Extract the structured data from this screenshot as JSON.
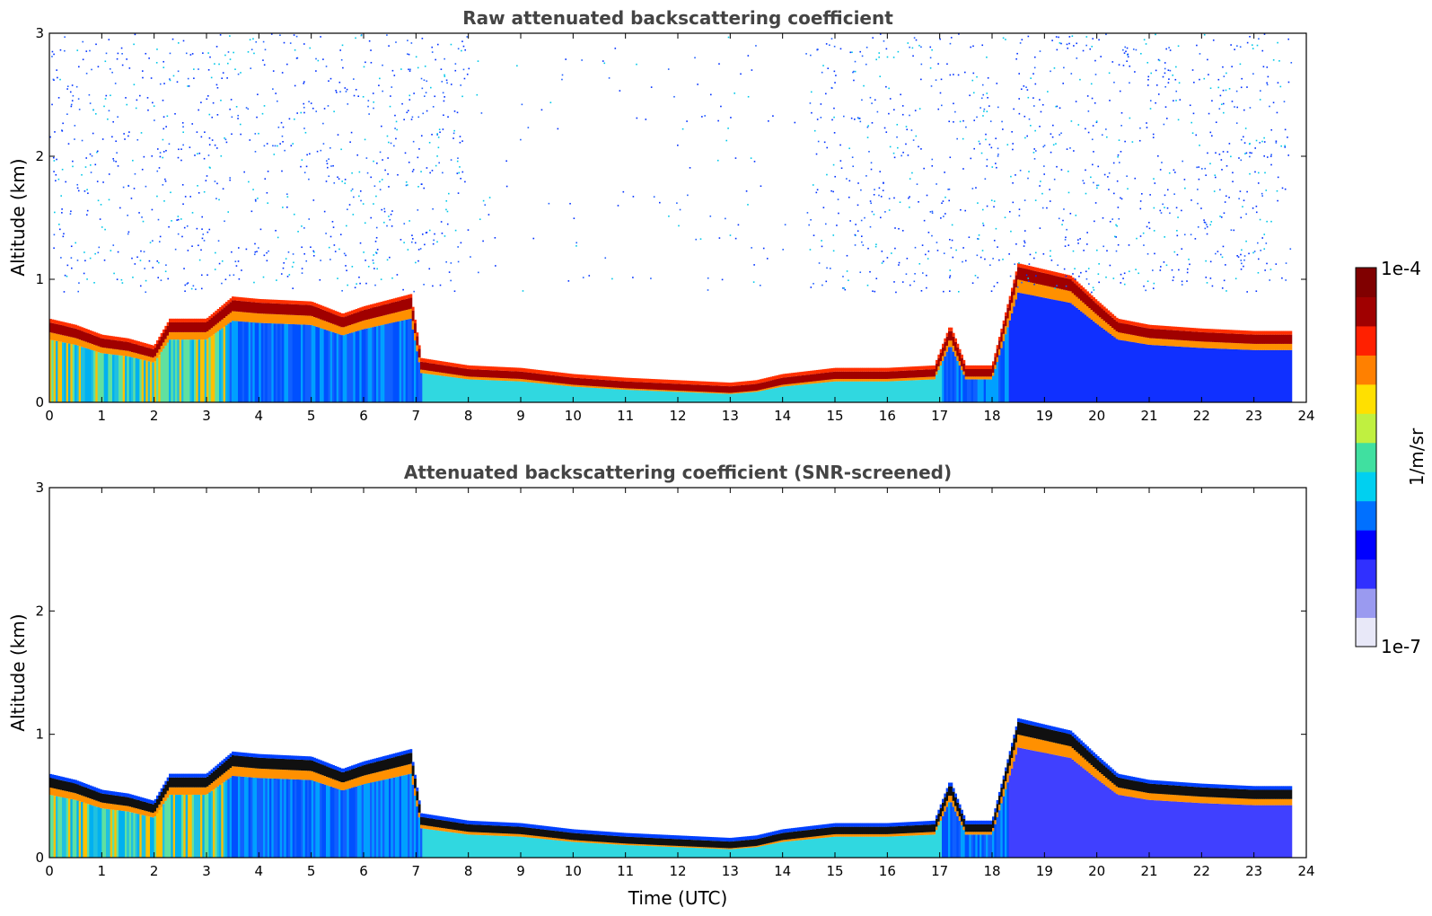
{
  "chart_data": [
    {
      "type": "heatmap",
      "title": "Raw attenuated backscattering coefficient",
      "ylabel": "Altitude (km)",
      "xlabel": "",
      "xlim": [
        0,
        24
      ],
      "ylim": [
        0,
        3
      ],
      "xticks": [
        "0",
        "1",
        "2",
        "3",
        "4",
        "5",
        "6",
        "7",
        "8",
        "9",
        "10",
        "11",
        "12",
        "13",
        "14",
        "15",
        "16",
        "17",
        "18",
        "19",
        "20",
        "21",
        "22",
        "23",
        "24"
      ],
      "yticks": [
        "0",
        "1",
        "2",
        "3"
      ],
      "screened": false
    },
    {
      "type": "heatmap",
      "title": "Attenuated backscattering coefficient (SNR-screened)",
      "ylabel": "Altitude (km)",
      "xlabel": "Time (UTC)",
      "xlim": [
        0,
        24
      ],
      "ylim": [
        0,
        3
      ],
      "xticks": [
        "0",
        "1",
        "2",
        "3",
        "4",
        "5",
        "6",
        "7",
        "8",
        "9",
        "10",
        "11",
        "12",
        "13",
        "14",
        "15",
        "16",
        "17",
        "18",
        "19",
        "20",
        "21",
        "22",
        "23",
        "24"
      ],
      "yticks": [
        "0",
        "1",
        "2",
        "3"
      ],
      "screened": true
    }
  ],
  "layer_top_km": [
    [
      0,
      0.6
    ],
    [
      0.5,
      0.55
    ],
    [
      1,
      0.47
    ],
    [
      1.5,
      0.44
    ],
    [
      2,
      0.38
    ],
    [
      2.3,
      0.6
    ],
    [
      3,
      0.6
    ],
    [
      3.5,
      0.78
    ],
    [
      4,
      0.76
    ],
    [
      5,
      0.74
    ],
    [
      5.6,
      0.64
    ],
    [
      6,
      0.7
    ],
    [
      6.9,
      0.8
    ],
    [
      7.1,
      0.28
    ],
    [
      8,
      0.22
    ],
    [
      9,
      0.2
    ],
    [
      10,
      0.15
    ],
    [
      11,
      0.12
    ],
    [
      12,
      0.1
    ],
    [
      13,
      0.08
    ],
    [
      13.5,
      0.1
    ],
    [
      14,
      0.15
    ],
    [
      15,
      0.2
    ],
    [
      16,
      0.2
    ],
    [
      16.9,
      0.22
    ],
    [
      17.2,
      0.55
    ],
    [
      17.5,
      0.22
    ],
    [
      18,
      0.22
    ],
    [
      18.5,
      1.05
    ],
    [
      19,
      1.0
    ],
    [
      19.5,
      0.95
    ],
    [
      20,
      0.75
    ],
    [
      20.4,
      0.6
    ],
    [
      21,
      0.55
    ],
    [
      22,
      0.52
    ],
    [
      23,
      0.5
    ],
    [
      23.7,
      0.5
    ]
  ],
  "colorbar": {
    "label": "1/m/sr",
    "max_label": "1e-4",
    "min_label": "1e-7",
    "colors": [
      "#e8e8f8",
      "#9a9af0",
      "#3030ff",
      "#0000ff",
      "#0070ff",
      "#00d0f0",
      "#40e0a0",
      "#c0f040",
      "#ffe000",
      "#ff8000",
      "#ff2000",
      "#a00000",
      "#800000"
    ]
  }
}
